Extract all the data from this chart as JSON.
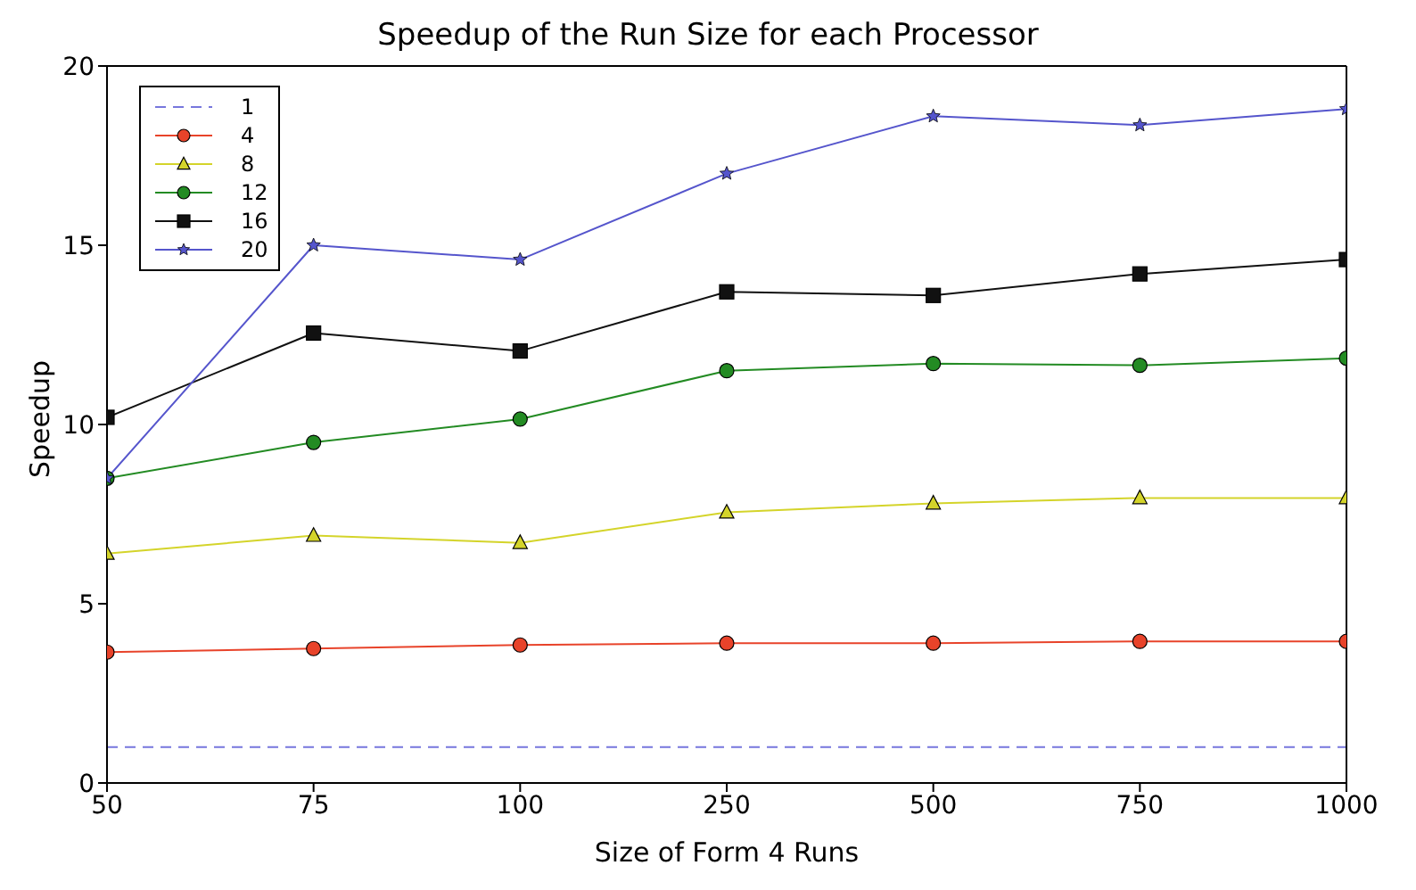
{
  "chart_data": {
    "type": "line",
    "title": "Speedup of the Run Size for each Processor",
    "xlabel": "Size of Form 4 Runs",
    "ylabel": "Speedup",
    "categories": [
      "50",
      "75",
      "100",
      "250",
      "500",
      "750",
      "1000"
    ],
    "ylim": [
      0,
      20
    ],
    "yticks": [
      0,
      5,
      10,
      15,
      20
    ],
    "grid": false,
    "legend": "top left",
    "series": [
      {
        "name": "1",
        "color": "#7777dd",
        "line_style": "dashed",
        "marker": "none",
        "values": [
          1,
          1,
          1,
          1,
          1,
          1,
          1
        ]
      },
      {
        "name": "4",
        "color": "#e8432a",
        "marker": "circle",
        "values": [
          3.65,
          3.75,
          3.85,
          3.9,
          3.9,
          3.95,
          3.95
        ]
      },
      {
        "name": "8",
        "color": "#d4d42a",
        "marker": "triangle",
        "values": [
          6.4,
          6.9,
          6.7,
          7.55,
          7.8,
          7.95,
          7.95
        ]
      },
      {
        "name": "12",
        "color": "#238b23",
        "marker": "circle",
        "values": [
          8.5,
          9.5,
          10.15,
          11.5,
          11.7,
          11.65,
          11.85
        ]
      },
      {
        "name": "16",
        "color": "#111111",
        "marker": "square",
        "values": [
          10.2,
          12.55,
          12.05,
          13.7,
          13.6,
          14.2,
          14.6
        ]
      },
      {
        "name": "20",
        "color": "#5555cc",
        "marker": "star",
        "values": [
          8.5,
          15.0,
          14.6,
          17.0,
          18.6,
          18.35,
          18.8
        ]
      }
    ]
  }
}
